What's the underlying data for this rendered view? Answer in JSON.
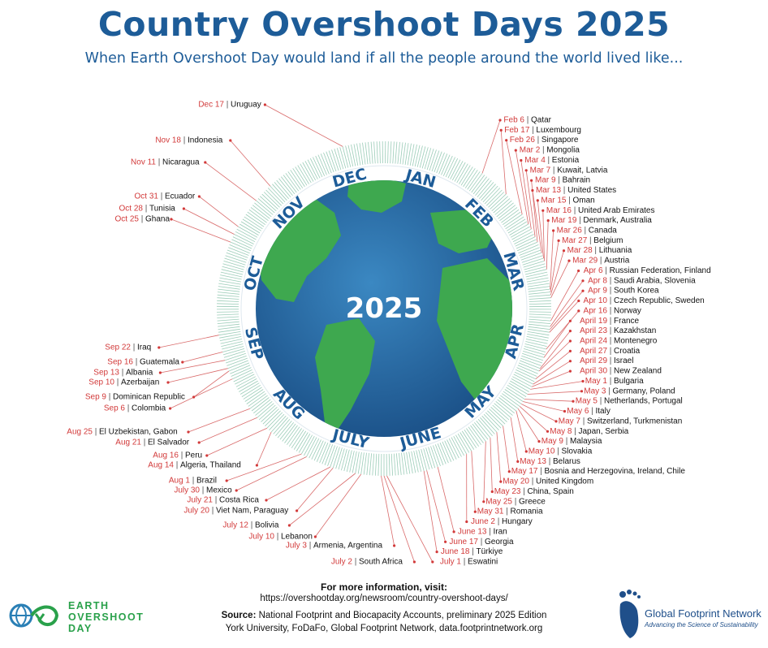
{
  "title": "Country Overshoot Days 2025",
  "subtitle": "When Earth Overshoot Day would land if all the people around the world lived like...",
  "center_label": "2025",
  "months": [
    "JAN",
    "FEB",
    "MAR",
    "APR",
    "MAY",
    "JUNE",
    "JULY",
    "AUG",
    "SEP",
    "OCT",
    "NOV",
    "DEC"
  ],
  "chart_data": {
    "type": "radial-timeline",
    "year": 2025,
    "entries": [
      {
        "date": "Feb 6",
        "country": "Qatar",
        "doy": 37
      },
      {
        "date": "Feb 17",
        "country": "Luxembourg",
        "doy": 48
      },
      {
        "date": "Feb 26",
        "country": "Singapore",
        "doy": 57
      },
      {
        "date": "Mar 2",
        "country": "Mongolia",
        "doy": 61
      },
      {
        "date": "Mar 4",
        "country": "Estonia",
        "doy": 63
      },
      {
        "date": "Mar 7",
        "country": "Kuwait, Latvia",
        "doy": 66
      },
      {
        "date": "Mar 9",
        "country": "Bahrain",
        "doy": 68
      },
      {
        "date": "Mar 13",
        "country": "United States",
        "doy": 72
      },
      {
        "date": "Mar 15",
        "country": "Oman",
        "doy": 74
      },
      {
        "date": "Mar 16",
        "country": "United Arab Emirates",
        "doy": 75
      },
      {
        "date": "Mar 19",
        "country": "Denmark, Australia",
        "doy": 78
      },
      {
        "date": "Mar 26",
        "country": "Canada",
        "doy": 85
      },
      {
        "date": "Mar 27",
        "country": "Belgium",
        "doy": 86
      },
      {
        "date": "Mar 28",
        "country": "Lithuania",
        "doy": 87
      },
      {
        "date": "Mar 29",
        "country": "Austria",
        "doy": 88
      },
      {
        "date": "Apr 6",
        "country": "Russian Federation, Finland",
        "doy": 96
      },
      {
        "date": "Apr 8",
        "country": "Saudi Arabia, Slovenia",
        "doy": 98
      },
      {
        "date": "Apr 9",
        "country": "South Korea",
        "doy": 99
      },
      {
        "date": "Apr 10",
        "country": "Czech Republic, Sweden",
        "doy": 100
      },
      {
        "date": "Apr 16",
        "country": "Norway",
        "doy": 106
      },
      {
        "date": "April 19",
        "country": "France",
        "doy": 109
      },
      {
        "date": "April 23",
        "country": "Kazakhstan",
        "doy": 113
      },
      {
        "date": "April 24",
        "country": "Montenegro",
        "doy": 114
      },
      {
        "date": "April 27",
        "country": "Croatia",
        "doy": 117
      },
      {
        "date": "April 29",
        "country": "Israel",
        "doy": 119
      },
      {
        "date": "April 30",
        "country": "New Zealand",
        "doy": 120
      },
      {
        "date": "May 1",
        "country": "Bulgaria",
        "doy": 121
      },
      {
        "date": "May 3",
        "country": "Germany, Poland",
        "doy": 123
      },
      {
        "date": "May 5",
        "country": "Netherlands, Portugal",
        "doy": 125
      },
      {
        "date": "May 6",
        "country": "Italy",
        "doy": 126
      },
      {
        "date": "May 7",
        "country": "Switzerland, Turkmenistan",
        "doy": 127
      },
      {
        "date": "May 8",
        "country": "Japan, Serbia",
        "doy": 128
      },
      {
        "date": "May 9",
        "country": "Malaysia",
        "doy": 129
      },
      {
        "date": "May 10",
        "country": "Slovakia",
        "doy": 130
      },
      {
        "date": "May 13",
        "country": "Belarus",
        "doy": 133
      },
      {
        "date": "May 17",
        "country": "Bosnia and Herzegovina, Ireland, Chile",
        "doy": 137
      },
      {
        "date": "May 20",
        "country": "United Kingdom",
        "doy": 140
      },
      {
        "date": "May 23",
        "country": "China, Spain",
        "doy": 143
      },
      {
        "date": "May 25",
        "country": "Greece",
        "doy": 145
      },
      {
        "date": "May 31",
        "country": "Romania",
        "doy": 151
      },
      {
        "date": "June 2",
        "country": "Hungary",
        "doy": 153
      },
      {
        "date": "June 13",
        "country": "Iran",
        "doy": 164
      },
      {
        "date": "June 17",
        "country": "Georgia",
        "doy": 168
      },
      {
        "date": "June 18",
        "country": "Türkiye",
        "doy": 169
      },
      {
        "date": "July 1",
        "country": "Eswatini",
        "doy": 182
      },
      {
        "date": "July 2",
        "country": "South Africa",
        "doy": 183
      },
      {
        "date": "July 3",
        "country": "Armenia, Argentina",
        "doy": 184
      },
      {
        "date": "July 10",
        "country": "Lebanon",
        "doy": 191
      },
      {
        "date": "July 12",
        "country": "Bolivia",
        "doy": 193
      },
      {
        "date": "July 20",
        "country": "Viet Nam, Paraguay",
        "doy": 201
      },
      {
        "date": "July 21",
        "country": "Costa Rica",
        "doy": 202
      },
      {
        "date": "July 30",
        "country": "Mexico",
        "doy": 211
      },
      {
        "date": "Aug 1",
        "country": "Brazil",
        "doy": 213
      },
      {
        "date": "Aug 14",
        "country": "Algeria, Thailand",
        "doy": 226
      },
      {
        "date": "Aug 16",
        "country": "Peru",
        "doy": 228
      },
      {
        "date": "Aug 21",
        "country": "El Salvador",
        "doy": 233
      },
      {
        "date": "Aug 25",
        "country": "El Uzbekistan, Gabon",
        "doy": 237
      },
      {
        "date": "Sep 6",
        "country": "Colombia",
        "doy": 249
      },
      {
        "date": "Sep 9",
        "country": "Dominican Republic",
        "doy": 252
      },
      {
        "date": "Sep 10",
        "country": "Azerbaijan",
        "doy": 253
      },
      {
        "date": "Sep 13",
        "country": "Albania",
        "doy": 256
      },
      {
        "date": "Sep 16",
        "country": "Guatemala",
        "doy": 259
      },
      {
        "date": "Sep 22",
        "country": "Iraq",
        "doy": 265
      },
      {
        "date": "Oct 25",
        "country": "Ghana",
        "doy": 298
      },
      {
        "date": "Oct 28",
        "country": "Tunisia",
        "doy": 301
      },
      {
        "date": "Oct 31",
        "country": "Ecuador",
        "doy": 304
      },
      {
        "date": "Nov 11",
        "country": "Nicaragua",
        "doy": 315
      },
      {
        "date": "Nov 18",
        "country": "Indonesia",
        "doy": 322
      },
      {
        "date": "Dec 17",
        "country": "Uruguay",
        "doy": 351
      }
    ]
  },
  "footer": {
    "info_heading": "For more information, visit:",
    "info_url": "https://overshootday.org/newsroom/country-overshoot-days/",
    "source_label": "Source:",
    "source_text": "National Footprint and Biocapacity Accounts, preliminary 2025 Edition",
    "source_text2": "York University, FoDaFo, Global Footprint Network, data.footprintnetwork.org"
  },
  "logos": {
    "eod_line1": "EARTH",
    "eod_line2": "OVERSHOOT",
    "eod_line3": "DAY",
    "gfn_name": "Global Footprint Network",
    "gfn_tagline": "Advancing the Science of Sustainability"
  },
  "colors": {
    "title": "#1d5c98",
    "date": "#d23a3a",
    "ocean": "#1f6fa8",
    "land": "#3ea84f",
    "tick": "#4aa37e"
  }
}
